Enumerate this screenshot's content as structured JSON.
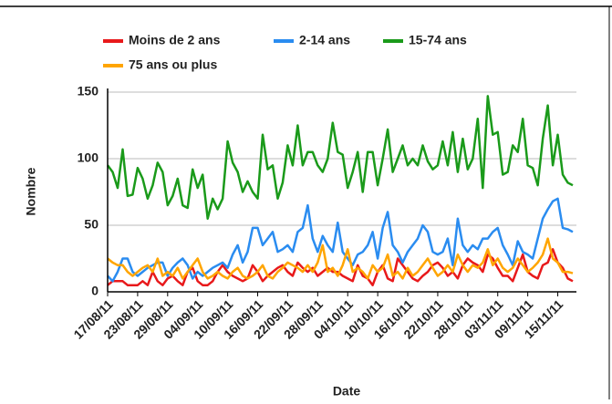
{
  "chart_data": {
    "type": "line",
    "x_label": "Date",
    "y_label": "Nombre",
    "categories": [
      "17/08/11",
      null,
      null,
      null,
      null,
      null,
      "23/08/11",
      null,
      null,
      null,
      null,
      null,
      "29/08/11",
      null,
      null,
      null,
      null,
      null,
      "04/09/11",
      null,
      null,
      null,
      null,
      null,
      "10/09/11",
      null,
      null,
      null,
      null,
      null,
      "16/09/11",
      null,
      null,
      null,
      null,
      null,
      "22/09/11",
      null,
      null,
      null,
      null,
      null,
      "28/09/11",
      null,
      null,
      null,
      null,
      null,
      "04/10/11",
      null,
      null,
      null,
      null,
      null,
      "10/10/11",
      null,
      null,
      null,
      null,
      null,
      "16/10/11",
      null,
      null,
      null,
      null,
      null,
      "22/10/11",
      null,
      null,
      null,
      null,
      null,
      "28/10/11",
      null,
      null,
      null,
      null,
      null,
      "03/11/11",
      null,
      null,
      null,
      null,
      null,
      "09/11/11",
      null,
      null,
      null,
      null,
      null,
      "15/11/11",
      null,
      null,
      null
    ],
    "series": [
      {
        "name": "Moins de 2 ans",
        "color": "#e8191b",
        "values": [
          5,
          8,
          8,
          8,
          5,
          5,
          5,
          8,
          5,
          15,
          8,
          5,
          10,
          12,
          8,
          5,
          15,
          18,
          8,
          5,
          5,
          8,
          15,
          20,
          15,
          12,
          10,
          8,
          10,
          20,
          15,
          8,
          12,
          15,
          18,
          20,
          15,
          12,
          22,
          18,
          15,
          18,
          12,
          15,
          18,
          15,
          15,
          12,
          10,
          8,
          20,
          12,
          10,
          5,
          15,
          20,
          10,
          8,
          25,
          20,
          15,
          10,
          8,
          12,
          15,
          20,
          22,
          18,
          12,
          15,
          10,
          20,
          25,
          22,
          20,
          15,
          28,
          25,
          18,
          12,
          12,
          8,
          18,
          28,
          15,
          12,
          10,
          20,
          22,
          32,
          22,
          18,
          10,
          8
        ]
      },
      {
        "name": "2-14 ans",
        "color": "#2a8cf0",
        "values": [
          12,
          8,
          15,
          25,
          25,
          15,
          12,
          15,
          18,
          20,
          22,
          22,
          12,
          18,
          22,
          25,
          20,
          10,
          15,
          12,
          15,
          18,
          20,
          22,
          18,
          28,
          35,
          22,
          30,
          48,
          48,
          35,
          40,
          45,
          30,
          32,
          35,
          30,
          45,
          48,
          65,
          40,
          30,
          42,
          35,
          30,
          52,
          30,
          25,
          20,
          28,
          30,
          35,
          45,
          25,
          48,
          60,
          35,
          30,
          22,
          30,
          35,
          40,
          50,
          45,
          30,
          28,
          30,
          40,
          20,
          55,
          35,
          30,
          35,
          32,
          40,
          40,
          45,
          48,
          35,
          28,
          20,
          38,
          30,
          28,
          25,
          40,
          55,
          62,
          68,
          70,
          48,
          47,
          45
        ]
      },
      {
        "name": "15-74 ans",
        "color": "#1a9a1a",
        "values": [
          95,
          90,
          78,
          107,
          72,
          73,
          93,
          85,
          70,
          80,
          97,
          90,
          65,
          72,
          85,
          65,
          63,
          92,
          78,
          88,
          55,
          70,
          62,
          70,
          113,
          97,
          90,
          75,
          83,
          75,
          70,
          118,
          92,
          95,
          70,
          82,
          110,
          95,
          125,
          95,
          105,
          105,
          95,
          90,
          100,
          127,
          105,
          103,
          78,
          90,
          105,
          75,
          105,
          105,
          80,
          100,
          122,
          90,
          100,
          110,
          95,
          100,
          95,
          110,
          98,
          92,
          95,
          113,
          95,
          120,
          90,
          115,
          92,
          100,
          130,
          78,
          147,
          118,
          120,
          88,
          90,
          110,
          105,
          130,
          95,
          93,
          80,
          115,
          140,
          95,
          118,
          88,
          82,
          80
        ]
      },
      {
        "name": "75 ans ou plus",
        "color": "#ffa500",
        "values": [
          25,
          22,
          20,
          20,
          15,
          12,
          15,
          18,
          20,
          15,
          25,
          12,
          15,
          12,
          18,
          10,
          15,
          20,
          25,
          15,
          10,
          12,
          15,
          12,
          10,
          15,
          18,
          12,
          10,
          12,
          15,
          20,
          12,
          10,
          15,
          18,
          22,
          20,
          18,
          15,
          20,
          15,
          22,
          35,
          15,
          18,
          12,
          20,
          32,
          15,
          18,
          15,
          10,
          20,
          15,
          18,
          28,
          12,
          15,
          10,
          18,
          12,
          15,
          20,
          25,
          18,
          12,
          15,
          20,
          15,
          28,
          20,
          15,
          20,
          18,
          22,
          32,
          20,
          25,
          18,
          15,
          18,
          25,
          20,
          15,
          18,
          22,
          28,
          40,
          25,
          22,
          15,
          15,
          14
        ]
      }
    ],
    "ylim": [
      0,
      150
    ],
    "yticks": [
      0,
      50,
      100,
      150
    ],
    "grid": true,
    "legend": "top"
  }
}
